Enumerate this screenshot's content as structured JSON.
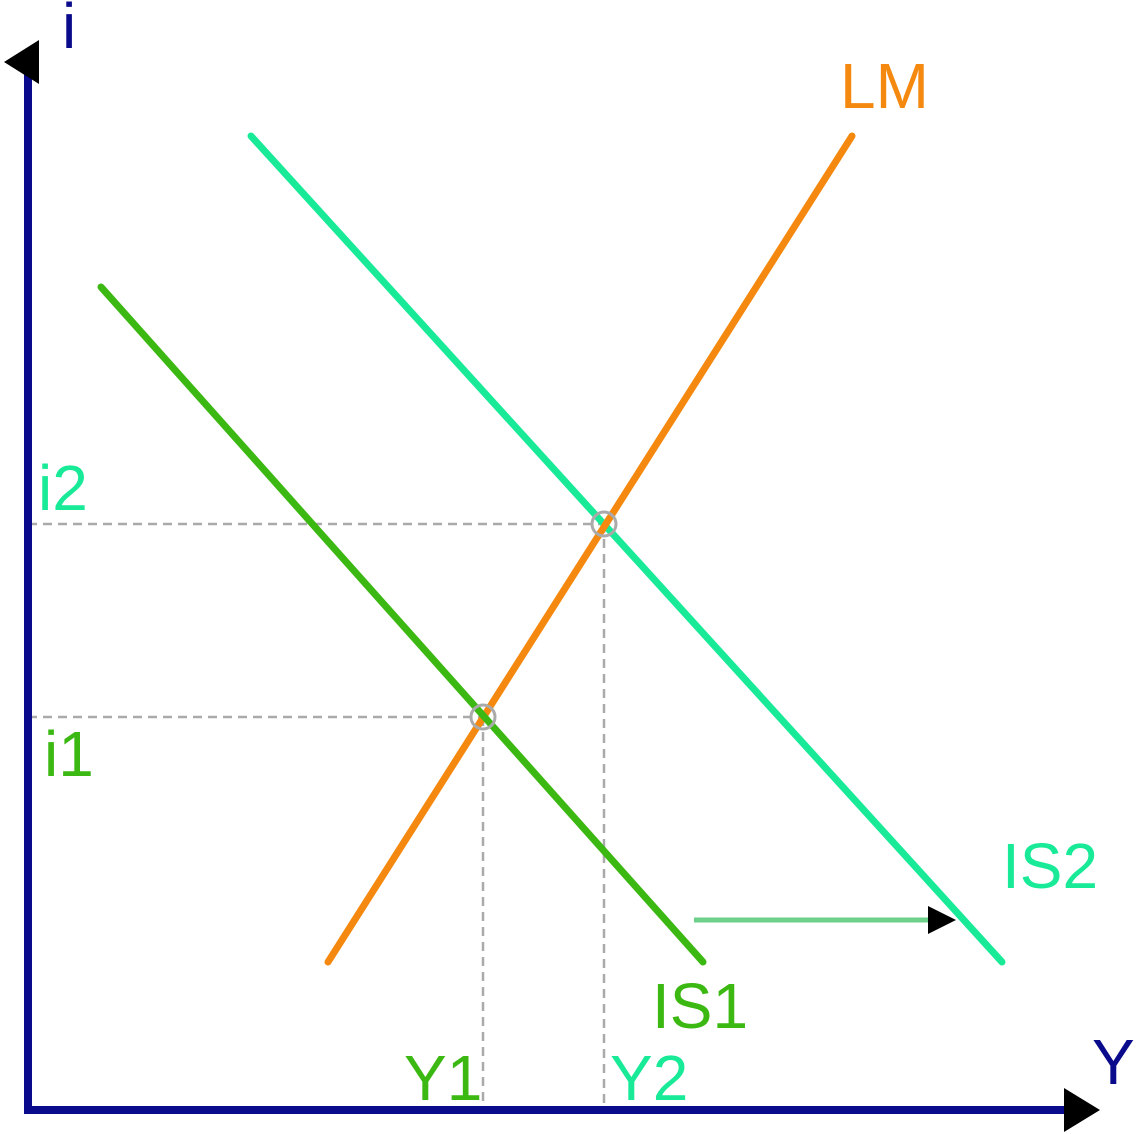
{
  "axes": {
    "y_label": "i",
    "x_label": "Y",
    "color": "#0a0a8c"
  },
  "curves": {
    "lm": {
      "label": "LM",
      "color": "#f5890f"
    },
    "is1": {
      "label": "IS1",
      "color": "#3cb812"
    },
    "is2": {
      "label": "IS2",
      "color": "#18ea98"
    }
  },
  "levels": {
    "i1": "i1",
    "i2": "i2",
    "y1": "Y1",
    "y2": "Y2"
  },
  "guide_color": "#aaaaaa",
  "shift_arrow_color": "#6ccf8a"
}
